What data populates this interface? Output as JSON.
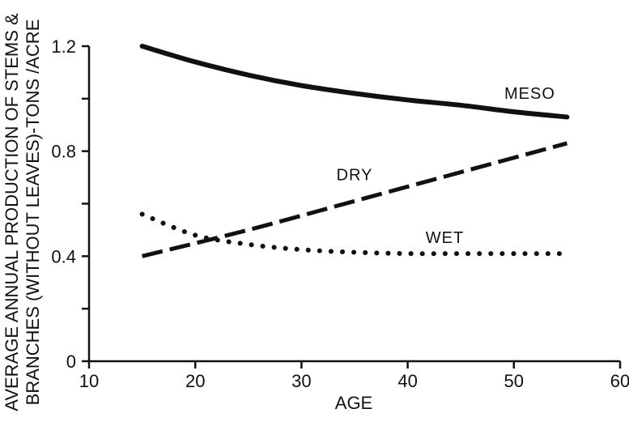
{
  "chart_data": {
    "type": "line",
    "title": "",
    "xlabel": "AGE",
    "ylabel_line1": "AVERAGE ANNUAL PRODUCTION OF STEMS &",
    "ylabel_line2": "BRANCHES (WITHOUT LEAVES)-TONS /ACRE",
    "xlim": [
      10,
      60
    ],
    "ylim": [
      0,
      1.2
    ],
    "x_ticks": [
      10,
      20,
      30,
      40,
      50,
      60
    ],
    "x_tick_labels": [
      "10",
      "20",
      "30",
      "40",
      "50",
      "60"
    ],
    "y_ticks": [
      0,
      0.2,
      0.4,
      0.6,
      0.8,
      1.0,
      1.2
    ],
    "y_tick_labels": [
      "0",
      "",
      "0.4",
      "",
      "0.8",
      "",
      "1.2"
    ],
    "grid": false,
    "series": [
      {
        "name": "MESO",
        "style": "solid",
        "x": [
          15,
          20,
          25,
          30,
          35,
          40,
          45,
          50,
          55
        ],
        "y": [
          1.2,
          1.14,
          1.09,
          1.05,
          1.02,
          0.995,
          0.975,
          0.95,
          0.93
        ]
      },
      {
        "name": "DRY",
        "style": "dashed",
        "x": [
          15,
          25,
          35,
          45,
          55
        ],
        "y": [
          0.4,
          0.5,
          0.61,
          0.72,
          0.83
        ]
      },
      {
        "name": "WET",
        "style": "dotted",
        "x": [
          15,
          20,
          25,
          30,
          35,
          40,
          45,
          50,
          55
        ],
        "y": [
          0.56,
          0.48,
          0.445,
          0.425,
          0.415,
          0.41,
          0.41,
          0.41,
          0.41
        ]
      }
    ],
    "annotations": [
      {
        "text": "MESO",
        "x": 51.5,
        "y": 1.0
      },
      {
        "text": "DRY",
        "x": 35,
        "y": 0.69
      },
      {
        "text": "WET",
        "x": 43.5,
        "y": 0.45
      }
    ]
  }
}
